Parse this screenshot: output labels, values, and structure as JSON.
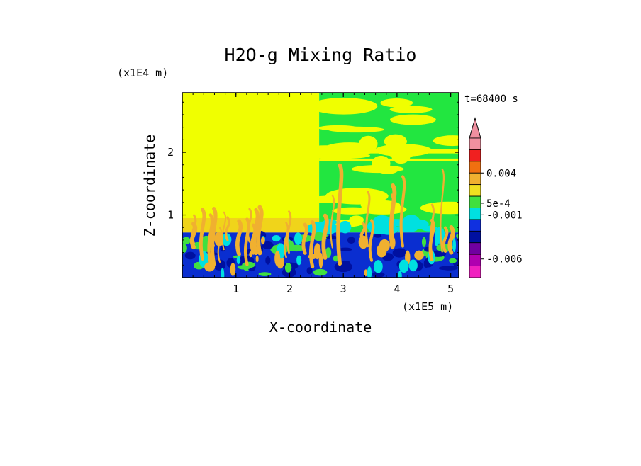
{
  "chart_data": {
    "type": "heatmap",
    "title": "H2O-g Mixing Ratio",
    "time_label": "t=68400 s",
    "xlabel": "X-coordinate",
    "ylabel": "Z-coordinate",
    "x_scale_label": "(x1E5 m)",
    "y_scale_label": "(x1E4 m)",
    "xlim": [
      0,
      5.15
    ],
    "ylim": [
      0,
      2.95
    ],
    "x_ticks": [
      "1",
      "2",
      "3",
      "4",
      "5"
    ],
    "y_ticks": [
      "1",
      "2"
    ],
    "colorbar": {
      "labels": [
        "0.004",
        "5e-4",
        "-0.001",
        "-0.006"
      ],
      "levels": [
        {
          "color": "#f090a0"
        },
        {
          "color": "#f02020"
        },
        {
          "color": "#f07010"
        },
        {
          "color": "#f0b030"
        },
        {
          "color": "#f0e020"
        },
        {
          "color": "#40e040"
        },
        {
          "color": "#00e0e0"
        },
        {
          "color": "#1030e0"
        },
        {
          "color": "#0010a0"
        },
        {
          "color": "#7000a0"
        },
        {
          "color": "#b000b0"
        },
        {
          "color": "#f020c0"
        }
      ],
      "extend": "max"
    },
    "fields": [
      {
        "name": "upper-left",
        "color": "#f0ff00",
        "x": [
          0,
          2.55
        ],
        "z": [
          0.72,
          2.95
        ]
      },
      {
        "name": "upper-right",
        "color": "#22e640",
        "x": [
          2.55,
          5.15
        ],
        "z": [
          0.72,
          2.95
        ]
      },
      {
        "name": "boundary-layer",
        "color": "#0a2ed0",
        "x": [
          0,
          5.15
        ],
        "z": [
          0,
          0.72
        ]
      }
    ]
  }
}
